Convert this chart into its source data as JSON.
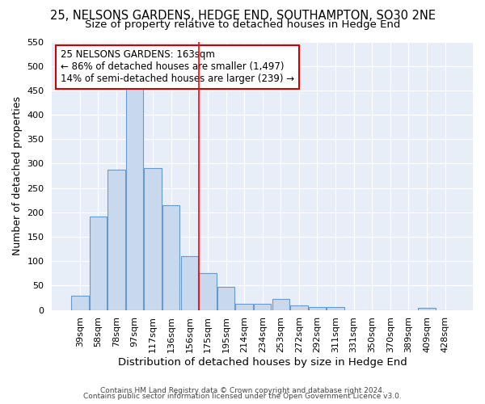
{
  "title": "25, NELSONS GARDENS, HEDGE END, SOUTHAMPTON, SO30 2NE",
  "subtitle": "Size of property relative to detached houses in Hedge End",
  "xlabel": "Distribution of detached houses by size in Hedge End",
  "ylabel": "Number of detached properties",
  "categories": [
    "39sqm",
    "58sqm",
    "78sqm",
    "97sqm",
    "117sqm",
    "136sqm",
    "156sqm",
    "175sqm",
    "195sqm",
    "214sqm",
    "234sqm",
    "253sqm",
    "272sqm",
    "292sqm",
    "311sqm",
    "331sqm",
    "350sqm",
    "370sqm",
    "389sqm",
    "409sqm",
    "428sqm"
  ],
  "values": [
    30,
    192,
    288,
    457,
    291,
    214,
    110,
    75,
    47,
    13,
    12,
    22,
    9,
    6,
    6,
    0,
    0,
    0,
    0,
    5,
    0
  ],
  "bar_color": "#c8d9ee",
  "bar_edge_color": "#6699cc",
  "red_line_x": 6.5,
  "annotation_text": "25 NELSONS GARDENS: 163sqm\n← 86% of detached houses are smaller (1,497)\n14% of semi-detached houses are larger (239) →",
  "annotation_box_color": "#ffffff",
  "annotation_box_edge_color": "#cc0000",
  "footer1": "Contains HM Land Registry data © Crown copyright and database right 2024.",
  "footer2": "Contains public sector information licensed under the Open Government Licence v3.0.",
  "ylim": [
    0,
    550
  ],
  "title_fontsize": 10.5,
  "subtitle_fontsize": 9.5,
  "ylabel_fontsize": 9,
  "xlabel_fontsize": 9.5,
  "bg_color": "#ffffff",
  "plot_bg_color": "#e8eef8"
}
